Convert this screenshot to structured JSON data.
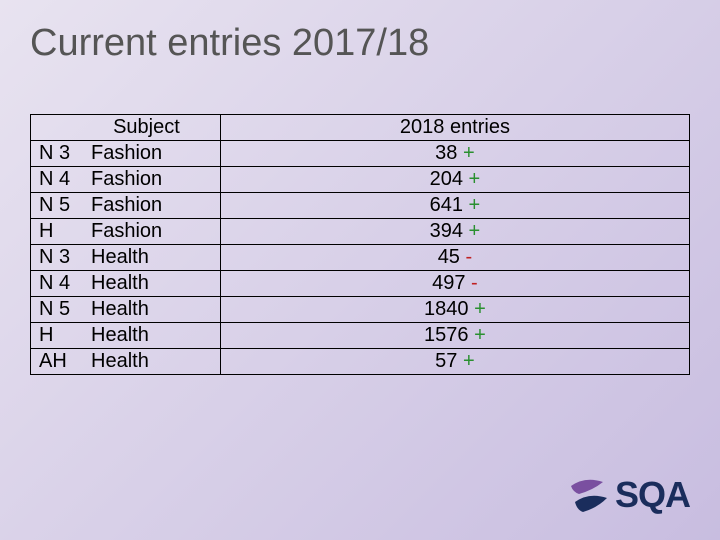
{
  "title": "Current entries 2017/18",
  "table": {
    "headers": {
      "subject": "Subject",
      "entries": "2018 entries"
    },
    "rows": [
      {
        "level": "N 3",
        "subject": "Fashion",
        "value": "38",
        "sign": "+",
        "signClass": "plus"
      },
      {
        "level": "N 4",
        "subject": "Fashion",
        "value": "204",
        "sign": "+",
        "signClass": "plus"
      },
      {
        "level": "N 5",
        "subject": "Fashion",
        "value": "641",
        "sign": "+",
        "signClass": "plus"
      },
      {
        "level": "H",
        "subject": "Fashion",
        "value": "394",
        "sign": "+",
        "signClass": "plus"
      },
      {
        "level": "N 3",
        "subject": "Health",
        "value": "45",
        "sign": "-",
        "signClass": "minus"
      },
      {
        "level": "N 4",
        "subject": "Health",
        "value": "497",
        "sign": "-",
        "signClass": "minus"
      },
      {
        "level": "N 5",
        "subject": "Health",
        "value": "1840",
        "sign": "+",
        "signClass": "plus"
      },
      {
        "level": "H",
        "subject": "Health",
        "value": "1576",
        "sign": "+",
        "signClass": "plus"
      },
      {
        "level": "AH",
        "subject": "Health",
        "value": "57",
        "sign": "+",
        "signClass": "plus"
      }
    ]
  },
  "logo": {
    "text": "SQA"
  },
  "colors": {
    "plus": "#2a9030",
    "minus": "#c02020",
    "title": "#555555",
    "logoText": "#1a2d5c",
    "logoPurple": "#7a4fa0",
    "logoBlue": "#1a2d5c"
  }
}
